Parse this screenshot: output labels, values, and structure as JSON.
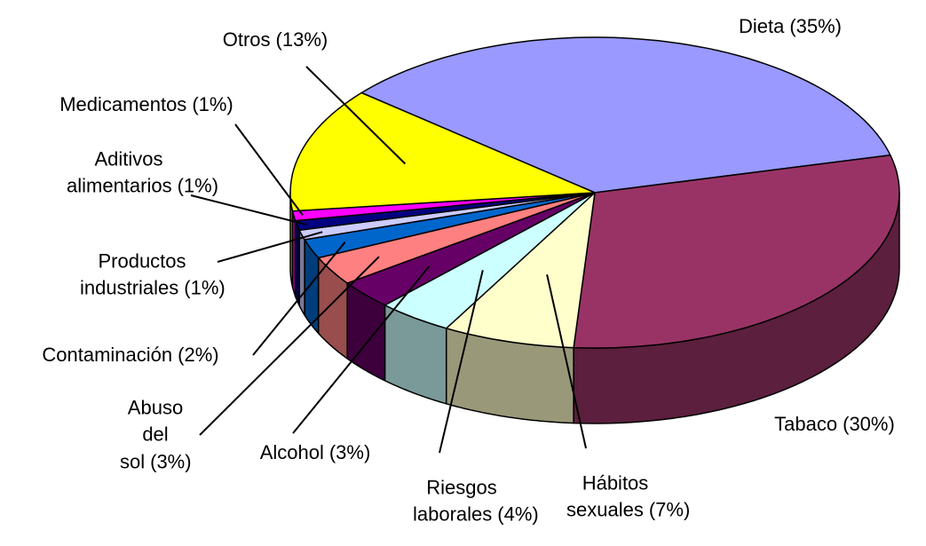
{
  "chart_data": {
    "type": "pie",
    "three_d": true,
    "categories": [
      "Dieta",
      "Tabaco",
      "Hábitos sexuales",
      "Riesgos laborales",
      "Alcohol",
      "Abuso del sol",
      "Contaminación",
      "Productos industriales",
      "Aditivos alimentarios",
      "Medicamentos",
      "Otros"
    ],
    "values": [
      35,
      30,
      7,
      4,
      3,
      3,
      2,
      1,
      1,
      1,
      13
    ],
    "value_labels": [
      "(35%)",
      "(30%)",
      "(7%)",
      "(4%)",
      "(3%)",
      "(3%)",
      "(2%)",
      "(1%)",
      "(1%)",
      "(1%)",
      "(13%)"
    ],
    "colors": [
      "#9999ff",
      "#993366",
      "#ffffcc",
      "#ccffff",
      "#660066",
      "#ff8080",
      "#0066cc",
      "#ccccff",
      "#000080",
      "#ff00ff",
      "#ffff00"
    ]
  }
}
